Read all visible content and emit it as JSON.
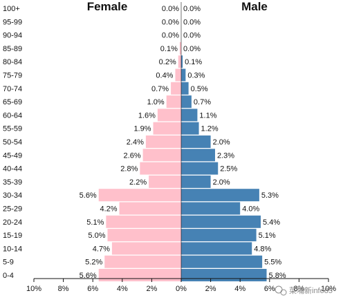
{
  "chart_data": {
    "type": "bar",
    "orientation": "horizontal-population-pyramid",
    "categories": [
      "100+",
      "95-99",
      "90-94",
      "85-89",
      "80-84",
      "75-79",
      "70-74",
      "65-69",
      "60-64",
      "55-59",
      "50-54",
      "45-49",
      "40-44",
      "35-39",
      "30-34",
      "25-29",
      "20-24",
      "15-19",
      "10-14",
      "5-9",
      "0-4"
    ],
    "series": [
      {
        "name": "Female",
        "color": "#ffc0cb",
        "values": [
          0.0,
          0.0,
          0.0,
          0.1,
          0.2,
          0.4,
          0.7,
          1.0,
          1.6,
          1.9,
          2.4,
          2.6,
          2.8,
          2.2,
          5.6,
          4.2,
          5.1,
          5.0,
          4.7,
          5.2,
          5.6
        ],
        "labels": [
          "0.0%",
          "0.0%",
          "0.0%",
          "0.1%",
          "0.2%",
          "0.4%",
          "0.7%",
          "1.0%",
          "1.6%",
          "1.9%",
          "2.4%",
          "2.6%",
          "2.8%",
          "2.2%",
          "5.6%",
          "4.2%",
          "5.1%",
          "5.0%",
          "4.7%",
          "5.2%",
          "5.6%"
        ]
      },
      {
        "name": "Male",
        "color": "#4682b4",
        "values": [
          0.0,
          0.0,
          0.0,
          0.0,
          0.1,
          0.3,
          0.5,
          0.7,
          1.1,
          1.2,
          2.0,
          2.3,
          2.5,
          2.0,
          5.3,
          4.0,
          5.4,
          5.1,
          4.8,
          5.5,
          5.8
        ],
        "labels": [
          "0.0%",
          "0.0%",
          "0.0%",
          "0.0%",
          "0.1%",
          "0.3%",
          "0.5%",
          "0.7%",
          "1.1%",
          "1.2%",
          "2.0%",
          "2.3%",
          "2.5%",
          "2.0%",
          "5.3%",
          "4.0%",
          "5.4%",
          "5.1%",
          "4.8%",
          "5.5%",
          "5.8%"
        ]
      }
    ],
    "x_ticks": [
      -10,
      -8,
      -6,
      -4,
      -2,
      0,
      2,
      4,
      6,
      8,
      10
    ],
    "x_tick_labels": [
      "10%",
      "8%",
      "6%",
      "4%",
      "2%",
      "0%",
      "2%",
      "4%",
      "6%",
      "8%",
      "10%"
    ],
    "xlim": [
      -10,
      10
    ],
    "female_title": "Female",
    "male_title": "Male",
    "grid": false
  },
  "watermark": {
    "text": "菜埔新info85",
    "icon": "wechat-icon"
  }
}
